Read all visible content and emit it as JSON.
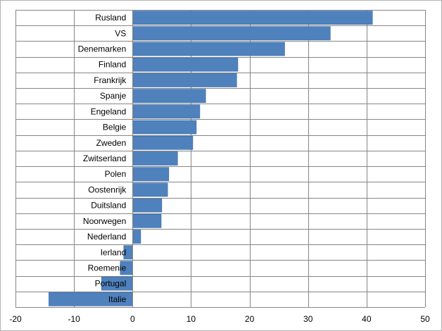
{
  "chart_data": {
    "type": "bar",
    "orientation": "horizontal",
    "title": "",
    "xlabel": "",
    "ylabel": "",
    "categories": [
      "Rusland",
      "VS",
      "Denemarken",
      "Finland",
      "Frankrijk",
      "Spanje",
      "Engeland",
      "Belgie",
      "Zweden",
      "Zwitserland",
      "Polen",
      "Oostenrijk",
      "Duitsland",
      "Noorwegen",
      "Nederland",
      "Ierland",
      "Roemenie",
      "Portugal",
      "Italie"
    ],
    "values": [
      41.0,
      33.8,
      26.0,
      18.0,
      17.8,
      12.5,
      11.5,
      10.9,
      10.3,
      7.7,
      6.2,
      6.0,
      5.0,
      4.9,
      1.4,
      -1.5,
      -2.1,
      -5.3,
      -14.3
    ],
    "xlim": [
      -20,
      50
    ],
    "xticks": [
      -20,
      -10,
      0,
      10,
      20,
      30,
      40,
      50
    ],
    "grid": true,
    "legend": "none",
    "bar_color": "#4f81bd",
    "bar_edge_color": "#3a6aa8",
    "grid_color": "#868686"
  }
}
